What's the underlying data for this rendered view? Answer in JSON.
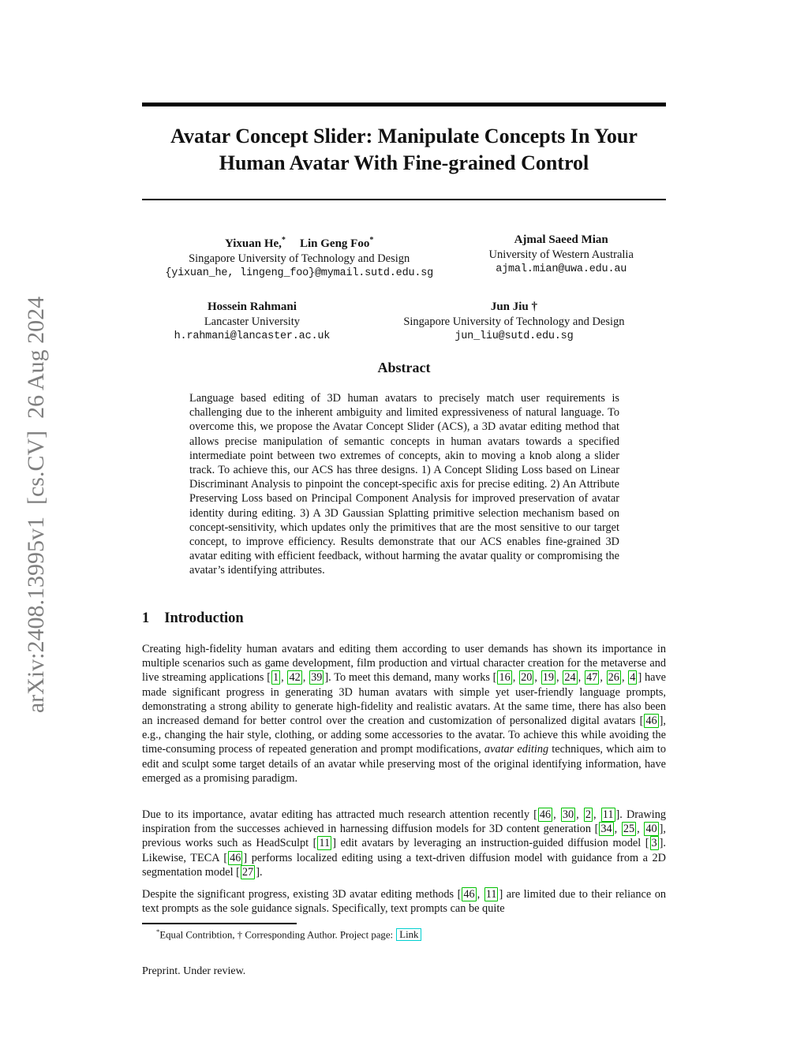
{
  "arxiv_watermark": "arXiv:2408.13995v1  [cs.CV]  26 Aug 2024",
  "title": {
    "line1": "Avatar Concept Slider: Manipulate Concepts In Your",
    "line2": "Human Avatar With Fine-grained Control"
  },
  "authors": {
    "rows": [
      [
        {
          "names": [
            {
              "text": "Yixuan He,",
              "marker": "*"
            },
            {
              "text": "Lin Geng Foo",
              "marker": "*"
            }
          ],
          "affiliation": "Singapore University of Technology and Design",
          "email": "{yixuan_he, lingeng_foo}@mymail.sutd.edu.sg"
        },
        {
          "names": [
            {
              "text": "Ajmal Saeed Mian",
              "marker": ""
            }
          ],
          "affiliation": "University of Western Australia",
          "email": "ajmal.mian@uwa.edu.au"
        }
      ],
      [
        {
          "names": [
            {
              "text": "Hossein Rahmani",
              "marker": ""
            }
          ],
          "affiliation": "Lancaster University",
          "email": "h.rahmani@lancaster.ac.uk"
        },
        {
          "names": [
            {
              "text": "Jun Jiu †",
              "marker": ""
            }
          ],
          "affiliation": "Singapore University of Technology and Design",
          "email": "jun_liu@sutd.edu.sg"
        }
      ]
    ]
  },
  "abstract": {
    "heading": "Abstract",
    "text": "Language based editing of 3D human avatars to precisely match user requirements is challenging due to the inherent ambiguity and limited expressiveness of natural language. To overcome this, we propose the Avatar Concept Slider (ACS), a 3D avatar editing method that allows precise manipulation of semantic concepts in human avatars towards a specified intermediate point between two extremes of concepts, akin to moving a knob along a slider track. To achieve this, our ACS has three designs. 1) A Concept Sliding Loss based on Linear Discriminant Analysis to pinpoint the concept-specific axis for precise editing. 2) An Attribute Preserving Loss based on Principal Component Analysis for improved preservation of avatar identity during editing. 3) A 3D Gaussian Splatting primitive selection mechanism based on concept-sensitivity, which updates only the primitives that are the most sensitive to our target concept, to improve efficiency. Results demonstrate that our ACS enables fine-grained 3D avatar editing with efficient feedback, without harming the avatar quality or compromising the avatar’s identifying attributes."
  },
  "introduction": {
    "number": "1",
    "heading": "Introduction",
    "paragraphs": [
      {
        "segments": [
          [
            "t",
            "Creating high-fidelity human avatars and editing them according to user demands has shown its importance in multiple scenarios such as game development, film production and virtual character creation for the metaverse and live streaming applications ["
          ],
          [
            "c",
            "1"
          ],
          [
            "t",
            ", "
          ],
          [
            "c",
            "42"
          ],
          [
            "t",
            ", "
          ],
          [
            "c",
            "39"
          ],
          [
            "t",
            "]. To meet this demand, many works ["
          ],
          [
            "c",
            "16"
          ],
          [
            "t",
            ", "
          ],
          [
            "c",
            "20"
          ],
          [
            "t",
            ", "
          ],
          [
            "c",
            "19"
          ],
          [
            "t",
            ", "
          ],
          [
            "c",
            "24"
          ],
          [
            "t",
            ", "
          ],
          [
            "c",
            "47"
          ],
          [
            "t",
            ", "
          ],
          [
            "c",
            "26"
          ],
          [
            "t",
            ", "
          ],
          [
            "c",
            "4"
          ],
          [
            "t",
            "] have made significant progress in generating 3D human avatars with simple yet user-friendly language prompts, demonstrating a strong ability to generate high-fidelity and realistic avatars. At the same time, there has also been an increased demand for better control over the creation and customization of personalized digital avatars ["
          ],
          [
            "c",
            "46"
          ],
          [
            "t",
            "], e.g., changing the hair style, clothing, or adding some accessories to the avatar. To achieve this while avoiding the time-consuming process of repeated generation and prompt modifications, "
          ],
          [
            "i",
            "avatar editing"
          ],
          [
            "t",
            " techniques, which aim to edit and sculpt some target details of an avatar while preserving most of the original identifying information, have emerged as a promising paradigm."
          ]
        ]
      },
      {
        "segments": [
          [
            "t",
            "Due to its importance, avatar editing has attracted much research attention recently ["
          ],
          [
            "c",
            "46"
          ],
          [
            "t",
            ", "
          ],
          [
            "c",
            "30"
          ],
          [
            "t",
            ", "
          ],
          [
            "c",
            "2"
          ],
          [
            "t",
            ", "
          ],
          [
            "c",
            "11"
          ],
          [
            "t",
            "]. Drawing inspiration from the successes achieved in harnessing diffusion models for 3D content generation ["
          ],
          [
            "c",
            "34"
          ],
          [
            "t",
            ", "
          ],
          [
            "c",
            "25"
          ],
          [
            "t",
            ", "
          ],
          [
            "c",
            "40"
          ],
          [
            "t",
            "], previous works such as HeadSculpt ["
          ],
          [
            "c",
            "11"
          ],
          [
            "t",
            "] edit avatars by leveraging an instruction-guided diffusion model ["
          ],
          [
            "c",
            "3"
          ],
          [
            "t",
            "]. Likewise, TECA ["
          ],
          [
            "c",
            "46"
          ],
          [
            "t",
            "] performs localized editing using a text-driven diffusion model with guidance from a 2D segmentation model ["
          ],
          [
            "c",
            "27"
          ],
          [
            "t",
            "]."
          ]
        ]
      },
      {
        "segments": [
          [
            "t",
            "Despite the significant progress, existing 3D avatar editing methods ["
          ],
          [
            "c",
            "46"
          ],
          [
            "t",
            ", "
          ],
          [
            "c",
            "11"
          ],
          [
            "t",
            "] are limited due to their reliance on text prompts as the sole guidance signals. Specifically, text prompts can be quite"
          ]
        ]
      }
    ]
  },
  "footnote": {
    "segments": [
      [
        "s",
        "*"
      ],
      [
        "t",
        "Equal Contribtion, † Corresponding Author. Project page: "
      ],
      [
        "l",
        "Link"
      ]
    ]
  },
  "preprint_note": "Preprint. Under review.",
  "colors": {
    "citation_green": "#00C000",
    "link_cyan": "#00CFCF",
    "watermark_gray": "#7F7F7F"
  }
}
